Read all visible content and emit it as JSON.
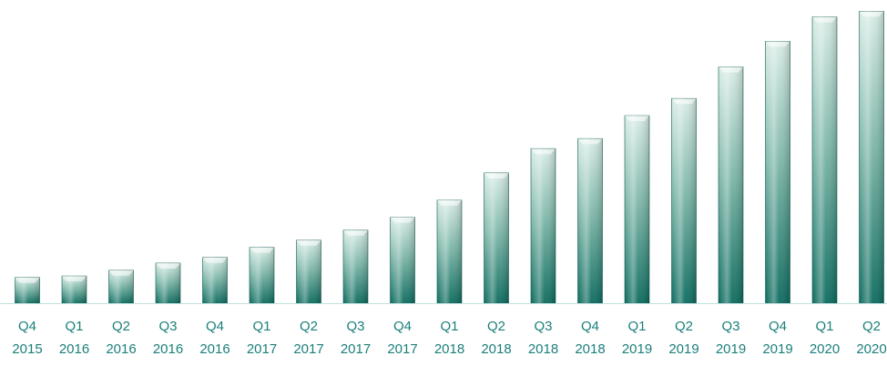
{
  "chart_data": {
    "type": "bar",
    "categories": [
      "Q4 2015",
      "Q1 2016",
      "Q2 2016",
      "Q3 2016",
      "Q4 2016",
      "Q1 2017",
      "Q2 2017",
      "Q3 2017",
      "Q4 2017",
      "Q1 2018",
      "Q2 2018",
      "Q3 2018",
      "Q4 2018",
      "Q1 2019",
      "Q2 2019",
      "Q3 2019",
      "Q4 2019",
      "Q1 2020",
      "Q2 2020"
    ],
    "tick_lines": [
      [
        "Q4",
        "2015"
      ],
      [
        "Q1",
        "2016"
      ],
      [
        "Q2",
        "2016"
      ],
      [
        "Q3",
        "2016"
      ],
      [
        "Q4",
        "2016"
      ],
      [
        "Q1",
        "2017"
      ],
      [
        "Q2",
        "2017"
      ],
      [
        "Q3",
        "2017"
      ],
      [
        "Q4",
        "2017"
      ],
      [
        "Q1",
        "2018"
      ],
      [
        "Q2",
        "2018"
      ],
      [
        "Q3",
        "2018"
      ],
      [
        "Q4",
        "2018"
      ],
      [
        "Q1",
        "2019"
      ],
      [
        "Q2",
        "2019"
      ],
      [
        "Q3",
        "2019"
      ],
      [
        "Q4",
        "2019"
      ],
      [
        "Q1",
        "2020"
      ],
      [
        "Q2",
        "2020"
      ]
    ],
    "values": [
      9,
      9.5,
      11.5,
      14,
      16,
      19.5,
      22,
      25.5,
      30,
      36,
      45.5,
      54,
      57.5,
      65.5,
      71.5,
      82.5,
      91.5,
      100,
      102
    ],
    "title": "",
    "xlabel": "",
    "ylabel": "",
    "ylim": [
      0,
      104
    ],
    "yaxis_visible": false,
    "grid": false,
    "legend": "none",
    "colors": {
      "bar_top": "#d8ece6",
      "bar_mid": "#7fb8aa",
      "bar_bottom": "#0c6b5e",
      "bar_edge": "#0f5a50",
      "baseline": "#bfe3df",
      "tick_text": "#1b7f7a"
    }
  }
}
